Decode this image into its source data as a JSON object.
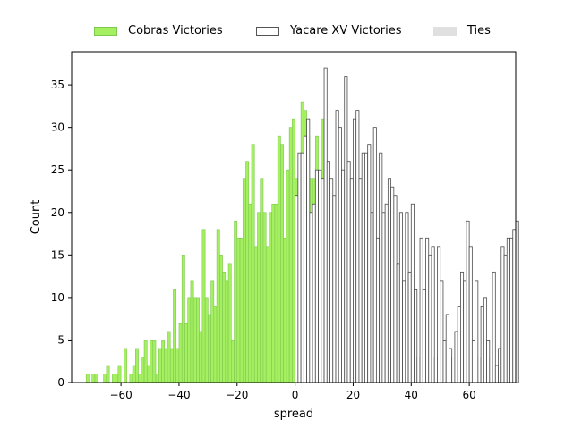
{
  "chart_data": {
    "type": "bar",
    "xlabel": "spread",
    "ylabel": "Count",
    "xlim": [
      -77,
      76
    ],
    "ylim": [
      0,
      38.9
    ],
    "xticks": [
      -60,
      -40,
      -20,
      0,
      20,
      40,
      60
    ],
    "xtick_labels": [
      "−60",
      "−40",
      "−20",
      "0",
      "20",
      "40",
      "60"
    ],
    "yticks": [
      0,
      5,
      10,
      15,
      20,
      25,
      30,
      35
    ],
    "ytick_labels": [
      "0",
      "5",
      "10",
      "15",
      "20",
      "25",
      "30",
      "35"
    ],
    "bin_width": 1,
    "legend_position": "top-center, outside",
    "series": [
      {
        "name": "Cobras Victories",
        "color": "#a5f060",
        "edge": "#7ec850",
        "x_start": -72,
        "values": [
          1,
          0,
          1,
          1,
          0,
          0,
          1,
          2,
          0,
          1,
          1,
          2,
          0,
          4,
          0,
          1,
          2,
          4,
          1,
          3,
          5,
          2,
          5,
          5,
          1,
          4,
          5,
          4,
          6,
          4,
          11,
          4,
          7,
          15,
          7,
          10,
          12,
          10,
          10,
          6,
          18,
          10,
          8,
          12,
          9,
          18,
          15,
          13,
          12,
          14,
          5,
          19,
          17,
          17,
          24,
          26,
          21,
          28,
          16,
          20,
          24,
          20,
          16,
          20,
          21,
          21,
          29,
          28,
          17,
          25,
          30,
          31,
          24,
          25,
          33,
          32,
          29,
          24,
          24,
          29,
          24,
          31,
          31
        ]
      },
      {
        "name": "Yacare XV Victories",
        "color": "#ffffff",
        "edge": "#4a4a4a",
        "x_start": 0,
        "values": [
          22,
          27,
          27,
          29,
          31,
          20,
          21,
          25,
          25,
          24,
          37,
          26,
          24,
          22,
          32,
          30,
          25,
          36,
          26,
          24,
          31,
          32,
          24,
          27,
          27,
          28,
          20,
          30,
          17,
          27,
          20,
          21,
          24,
          23,
          22,
          14,
          20,
          12,
          20,
          13,
          21,
          11,
          3,
          17,
          11,
          17,
          15,
          16,
          3,
          16,
          12,
          5,
          8,
          4,
          3,
          6,
          9,
          13,
          12,
          19,
          16,
          5,
          12,
          3,
          9,
          10,
          5,
          3,
          13,
          2,
          4,
          16,
          15,
          17,
          17,
          18,
          19
        ]
      },
      {
        "name": "Ties",
        "color": "#e0e0e0",
        "edge": "#e0e0e0",
        "x_start": 0,
        "values": []
      }
    ]
  }
}
